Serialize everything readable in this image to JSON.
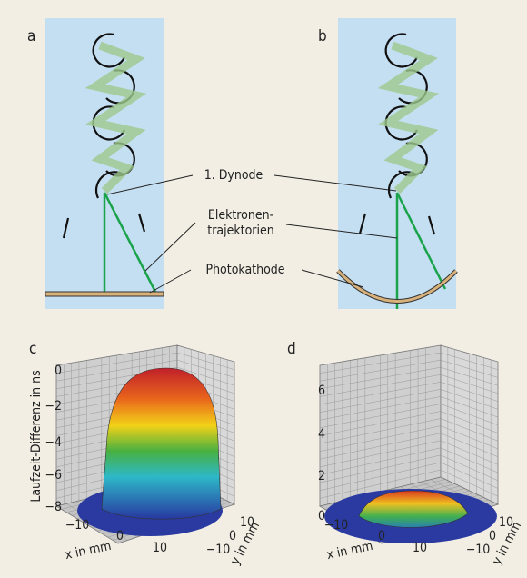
{
  "labels": {
    "a": "a",
    "b": "b",
    "c": "c",
    "d": "d"
  },
  "annotations": {
    "dynode": "1. Dynode",
    "trajectories": [
      "Elektronen-",
      "trajektorien"
    ],
    "cathode": "Photokathode"
  },
  "plot_c": {
    "z_label": "Laufzeit-Differenz in ns",
    "z_ticks": [
      "0",
      "−2",
      "−4",
      "−6",
      "−8"
    ],
    "x_ticks": [
      "−10",
      "0",
      "10"
    ],
    "y_ticks": [
      "10",
      "0",
      "−10"
    ],
    "x_label": "x in mm",
    "y_label": "y in mm"
  },
  "plot_d": {
    "z_ticks": [
      "6",
      "4",
      "2",
      "0"
    ],
    "x_ticks": [
      "−10",
      "0",
      "10"
    ],
    "y_ticks": [
      "10",
      "0",
      "−10"
    ],
    "x_label": "x in mm",
    "y_label": "y in mm"
  }
}
